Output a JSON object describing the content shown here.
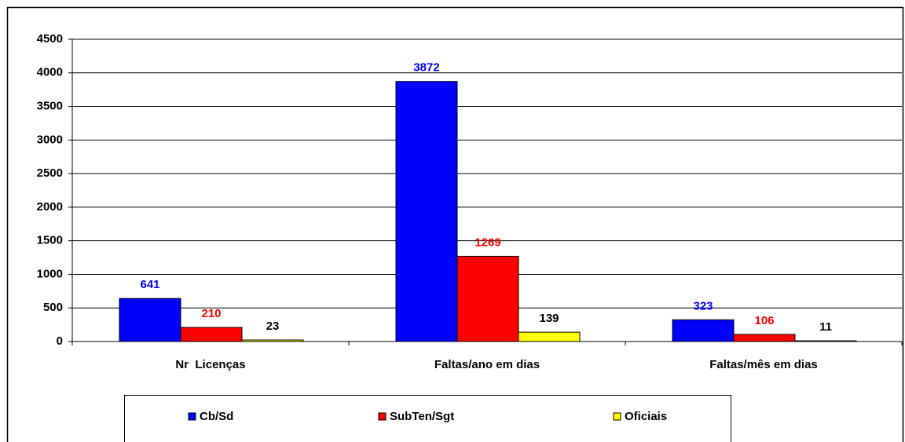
{
  "chart_data": {
    "type": "bar",
    "categories": [
      "Nr  Licenças",
      "Faltas/ano em dias",
      "Faltas/mês em dias"
    ],
    "series": [
      {
        "name": "Cb/Sd",
        "color": "#0000ff",
        "label_color": "#0000ff",
        "values": [
          641,
          3872,
          323
        ]
      },
      {
        "name": "SubTen/Sgt",
        "color": "#ff0000",
        "label_color": "#ff0000",
        "values": [
          210,
          1269,
          106
        ]
      },
      {
        "name": "Oficiais",
        "color": "#ffff00",
        "label_color": "#000000",
        "values": [
          23,
          139,
          11
        ]
      }
    ],
    "ylim": [
      0,
      4500
    ],
    "yticks": [
      0,
      500,
      1000,
      1500,
      2000,
      2500,
      3000,
      3500,
      4000,
      4500
    ],
    "grid": true,
    "legend": "bottom"
  }
}
